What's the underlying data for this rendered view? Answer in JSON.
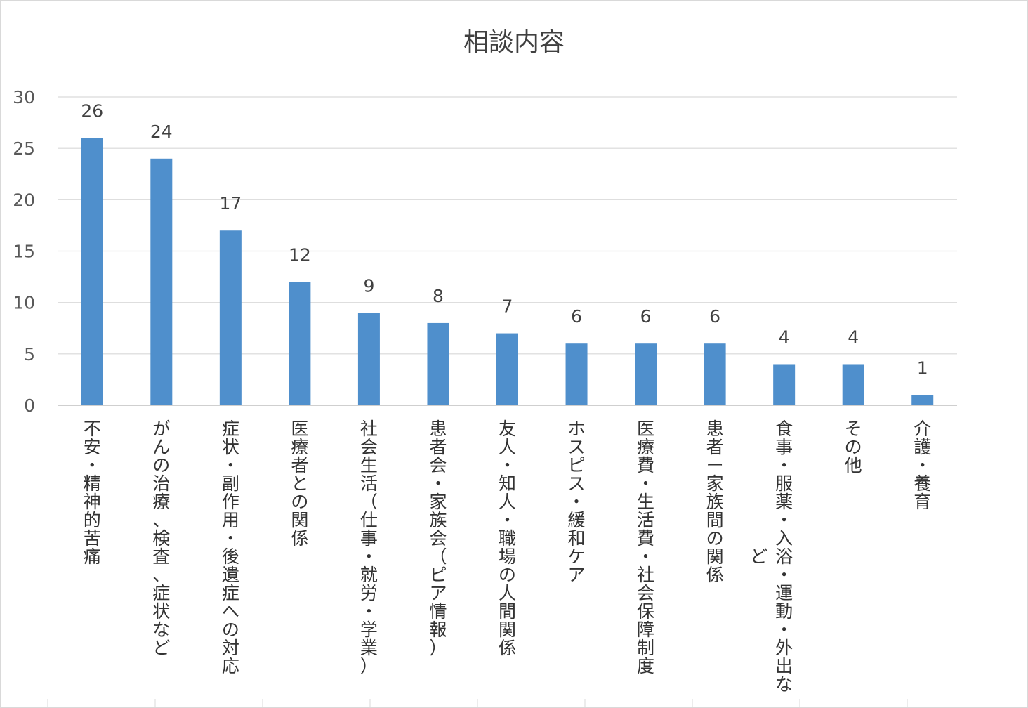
{
  "chart_data": {
    "type": "bar",
    "title": "相談内容",
    "xlabel": "",
    "ylabel": "",
    "ylim": [
      0,
      30
    ],
    "yticks": [
      0,
      5,
      10,
      15,
      20,
      25,
      30
    ],
    "grid": true,
    "legend": "none",
    "color": "#4f8fcc",
    "categories": [
      "不安・精神的苦痛",
      "がんの治療、検査、症状など",
      "症状・副作用・後遺症への対応",
      "医療者との関係",
      "社会生活（仕事・就労・学業）",
      "患者会・家族会（ピア情報）",
      "友人・知人・職場の人間関係",
      "ホスピス・緩和ケア",
      "医療費・生活費・社会保障制度",
      "患者ー家族間の関係",
      "食事・服薬・入浴・運動・外出など",
      "その他",
      "介護・養育"
    ],
    "values": [
      26,
      24,
      17,
      12,
      9,
      8,
      7,
      6,
      6,
      6,
      4,
      4,
      1
    ]
  }
}
